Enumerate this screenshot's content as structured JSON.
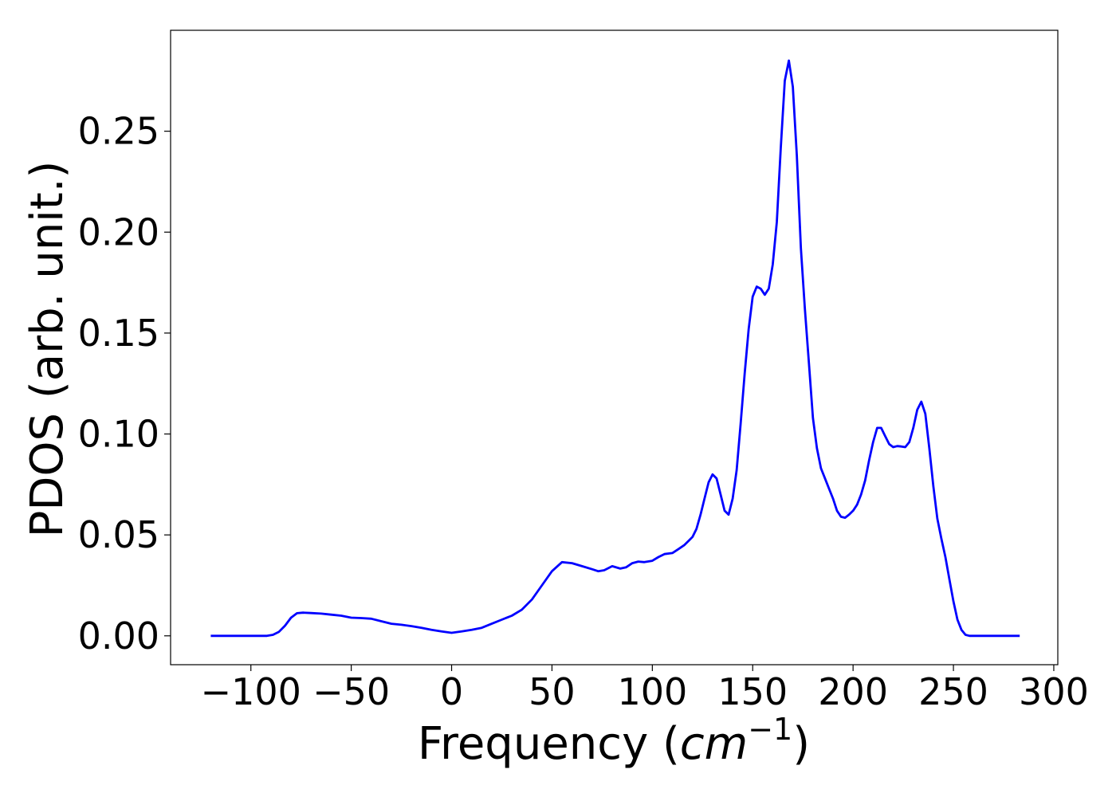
{
  "chart_data": {
    "type": "line",
    "title": "",
    "xlabel_main": "Frequency (",
    "xlabel_math": "cm",
    "xlabel_sup": "−1",
    "xlabel_close": ")",
    "ylabel": "PDOS (arb. unit.)",
    "xlim": [
      -140,
      302
    ],
    "ylim": [
      -0.0143,
      0.3
    ],
    "x_ticks": [
      -100,
      -50,
      0,
      50,
      100,
      150,
      200,
      250,
      300
    ],
    "x_tick_labels": [
      "−100",
      "−50",
      "0",
      "50",
      "100",
      "150",
      "200",
      "250",
      "300"
    ],
    "y_ticks": [
      0.0,
      0.05,
      0.1,
      0.15,
      0.2,
      0.25
    ],
    "y_tick_labels": [
      "0.00",
      "0.05",
      "0.10",
      "0.15",
      "0.20",
      "0.25"
    ],
    "grid": false,
    "line_color": "#0000ff",
    "series": [
      {
        "x": [
          -120,
          -92,
          -89,
          -86,
          -83,
          -80,
          -77,
          -74,
          -70,
          -65,
          -60,
          -55,
          -50,
          -45,
          -40,
          -35,
          -30,
          -25,
          -20,
          -15,
          -10,
          -5,
          0,
          5,
          10,
          15,
          20,
          25,
          30,
          35,
          40,
          45,
          50,
          55,
          60,
          65,
          70,
          73,
          76,
          80,
          84,
          87,
          90,
          93,
          96,
          100,
          103,
          106,
          110,
          113,
          116,
          118,
          120,
          122,
          124,
          126,
          128,
          130,
          132,
          134,
          136,
          138,
          140,
          142,
          144,
          146,
          148,
          150,
          152,
          154,
          156,
          158,
          160,
          162,
          164,
          166,
          168,
          170,
          172,
          174,
          176,
          178,
          180,
          182,
          184,
          186,
          188,
          190,
          192,
          194,
          196,
          198,
          200,
          202,
          204,
          206,
          208,
          210,
          212,
          214,
          216,
          218,
          220,
          222,
          224,
          226,
          228,
          230,
          232,
          234,
          236,
          238,
          240,
          242,
          244,
          246,
          248,
          250,
          252,
          254,
          256,
          258,
          260,
          265,
          270,
          283
        ],
        "y": [
          0.0,
          0.0,
          0.0005,
          0.002,
          0.005,
          0.009,
          0.0112,
          0.0115,
          0.0113,
          0.011,
          0.0105,
          0.01,
          0.009,
          0.0088,
          0.0085,
          0.0072,
          0.006,
          0.0055,
          0.0048,
          0.004,
          0.003,
          0.0022,
          0.0015,
          0.0022,
          0.003,
          0.004,
          0.006,
          0.008,
          0.01,
          0.013,
          0.018,
          0.025,
          0.032,
          0.0365,
          0.036,
          0.0345,
          0.033,
          0.032,
          0.0325,
          0.0345,
          0.0333,
          0.034,
          0.036,
          0.0368,
          0.0365,
          0.0372,
          0.039,
          0.0405,
          0.041,
          0.043,
          0.045,
          0.047,
          0.049,
          0.053,
          0.06,
          0.068,
          0.076,
          0.08,
          0.078,
          0.07,
          0.062,
          0.06,
          0.068,
          0.082,
          0.105,
          0.13,
          0.152,
          0.168,
          0.173,
          0.172,
          0.169,
          0.172,
          0.184,
          0.205,
          0.242,
          0.275,
          0.285,
          0.272,
          0.238,
          0.192,
          0.162,
          0.135,
          0.108,
          0.093,
          0.083,
          0.078,
          0.073,
          0.068,
          0.062,
          0.059,
          0.0585,
          0.06,
          0.062,
          0.065,
          0.07,
          0.077,
          0.087,
          0.096,
          0.103,
          0.103,
          0.099,
          0.095,
          0.0935,
          0.094,
          0.0938,
          0.0935,
          0.096,
          0.103,
          0.112,
          0.116,
          0.11,
          0.093,
          0.074,
          0.058,
          0.048,
          0.039,
          0.028,
          0.017,
          0.008,
          0.003,
          0.0005,
          0.0,
          0.0,
          0.0,
          0.0,
          0.0
        ]
      }
    ]
  }
}
